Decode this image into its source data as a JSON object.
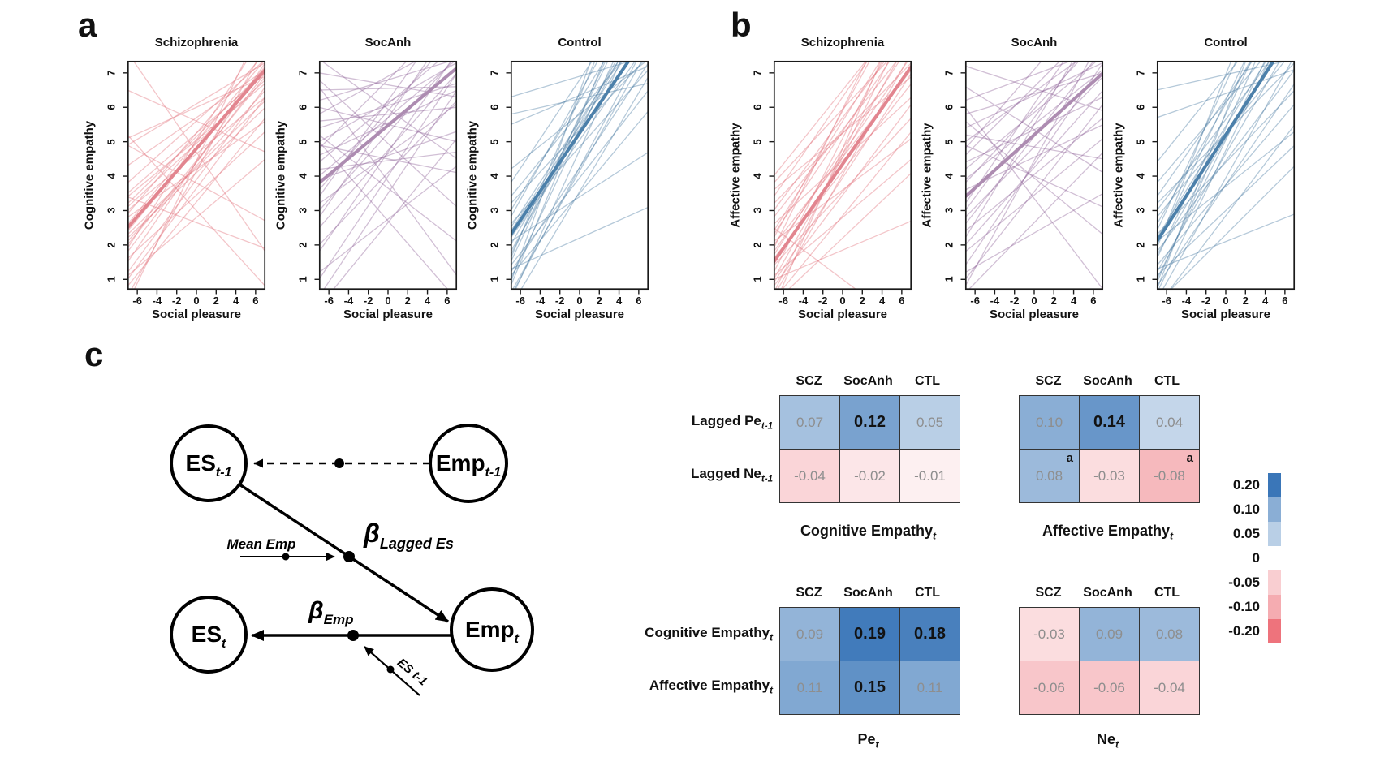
{
  "panels": {
    "a_label": "a",
    "b_label": "b",
    "c_label": "c"
  },
  "chart_data": {
    "type": "line",
    "x": {
      "label": "Social pleasure",
      "range": [
        -7,
        7
      ],
      "ticks": [
        -6,
        -4,
        -2,
        0,
        2,
        4,
        6
      ]
    },
    "y": {
      "range": [
        0.7,
        7.35
      ],
      "ticks": [
        1,
        2,
        3,
        4,
        5,
        6,
        7
      ]
    },
    "grid": false,
    "panels": [
      {
        "panel": "a",
        "title": "Schizophrenia",
        "ylabel": "Cognitive empathy",
        "thin_color": "rgba(224,110,120,0.40)",
        "mean_color": "#e2858f",
        "mean": [
          2.5,
          7.1
        ],
        "lines": [
          [
            1.0,
            6.3
          ],
          [
            1.5,
            7.3
          ],
          [
            2.0,
            6.9
          ],
          [
            2.6,
            7.4
          ],
          [
            3.2,
            7.1
          ],
          [
            0.8,
            5.7
          ],
          [
            1.8,
            7.0
          ],
          [
            2.2,
            6.0
          ],
          [
            3.4,
            6.7
          ],
          [
            2.9,
            7.6
          ],
          [
            1.2,
            6.6
          ],
          [
            2.4,
            7.2
          ],
          [
            3.0,
            6.3
          ],
          [
            3.8,
            7.4
          ],
          [
            4.3,
            7.1
          ],
          [
            1.6,
            5.3
          ],
          [
            2.1,
            6.5
          ],
          [
            2.8,
            5.6
          ],
          [
            3.5,
            7.0
          ],
          [
            4.9,
            7.3
          ],
          [
            5.1,
            6.9
          ],
          [
            1.1,
            4.5
          ],
          [
            0.5,
            7.8
          ],
          [
            2.3,
            6.2
          ],
          [
            3.1,
            6.8
          ],
          [
            7.6,
            1.8
          ],
          [
            5.2,
            0.8
          ],
          [
            4.9,
            2.7
          ],
          [
            3.4,
            1.9
          ],
          [
            6.5,
            4.7
          ],
          [
            0.3,
            8.6
          ],
          [
            1.9,
            8.2
          ]
        ]
      },
      {
        "panel": "a",
        "title": "SocAnh",
        "ylabel": "Cognitive empathy",
        "thin_color": "rgba(140,95,150,0.40)",
        "mean_color": "#ad8cb1",
        "mean": [
          3.8,
          7.15
        ],
        "lines": [
          [
            3.0,
            7.5
          ],
          [
            2.5,
            7.0
          ],
          [
            3.6,
            8.2
          ],
          [
            4.0,
            7.4
          ],
          [
            2.0,
            6.2
          ],
          [
            1.0,
            7.0
          ],
          [
            0.5,
            6.5
          ],
          [
            3.2,
            6.1
          ],
          [
            4.4,
            7.8
          ],
          [
            5.0,
            7.3
          ],
          [
            4.6,
            6.5
          ],
          [
            5.4,
            6.7
          ],
          [
            6.2,
            7.4
          ],
          [
            5.8,
            8.0
          ],
          [
            3.9,
            5.3
          ],
          [
            4.2,
            4.7
          ],
          [
            5.6,
            6.0
          ],
          [
            6.5,
            6.6
          ],
          [
            2.8,
            8.6
          ],
          [
            1.8,
            7.6
          ],
          [
            0.2,
            5.1
          ],
          [
            1.2,
            4.3
          ],
          [
            3.4,
            9.0
          ],
          [
            4.8,
            8.8
          ],
          [
            6.8,
            3.1
          ],
          [
            7.4,
            4.5
          ],
          [
            5.2,
            2.1
          ],
          [
            6.0,
            5.0
          ],
          [
            4.9,
            4.1
          ],
          [
            7.0,
            6.3
          ],
          [
            5.0,
            0.4
          ],
          [
            6.6,
            1.1
          ]
        ]
      },
      {
        "panel": "a",
        "title": "Control",
        "ylabel": "Cognitive empathy",
        "thin_color": "rgba(70,120,160,0.40)",
        "mean_color": "#4c80aa",
        "mean": [
          2.3,
          8.2
        ],
        "lines": [
          [
            1.0,
            9.5
          ],
          [
            0.5,
            8.0
          ],
          [
            1.5,
            10.0
          ],
          [
            2.0,
            9.0
          ],
          [
            1.2,
            7.3
          ],
          [
            0.2,
            6.9
          ],
          [
            2.5,
            8.7
          ],
          [
            3.0,
            9.4
          ],
          [
            1.8,
            8.9
          ],
          [
            0.8,
            10.5
          ],
          [
            2.2,
            7.9
          ],
          [
            1.4,
            6.5
          ],
          [
            3.4,
            8.3
          ],
          [
            2.8,
            10.0
          ],
          [
            0.4,
            9.1
          ],
          [
            1.6,
            11.0
          ],
          [
            2.6,
            7.1
          ],
          [
            3.8,
            9.8
          ],
          [
            1.1,
            5.9
          ],
          [
            0.6,
            7.7
          ],
          [
            2.4,
            8.5
          ],
          [
            3.2,
            7.5
          ],
          [
            6.3,
            7.5
          ],
          [
            5.5,
            7.2
          ],
          [
            4.2,
            7.4
          ],
          [
            1.3,
            3.1
          ],
          [
            2.1,
            4.7
          ],
          [
            5.8,
            6.7
          ],
          [
            0.9,
            12.0
          ],
          [
            1.7,
            9.7
          ]
        ]
      },
      {
        "panel": "b",
        "title": "Schizophrenia",
        "ylabel": "Affective empathy",
        "thin_color": "rgba(224,110,120,0.40)",
        "mean_color": "#e2858f",
        "mean": [
          1.5,
          7.2
        ],
        "lines": [
          [
            0.5,
            7.6
          ],
          [
            1.0,
            8.1
          ],
          [
            1.8,
            7.5
          ],
          [
            2.4,
            8.8
          ],
          [
            0.8,
            6.1
          ],
          [
            1.2,
            9.0
          ],
          [
            2.0,
            7.1
          ],
          [
            3.0,
            8.4
          ],
          [
            0.4,
            5.3
          ],
          [
            1.6,
            6.7
          ],
          [
            2.8,
            7.9
          ],
          [
            3.4,
            9.2
          ],
          [
            0.9,
            7.0
          ],
          [
            1.4,
            5.7
          ],
          [
            2.2,
            9.6
          ],
          [
            3.8,
            8.1
          ],
          [
            1.1,
            4.5
          ],
          [
            2.6,
            6.3
          ],
          [
            0.6,
            8.7
          ],
          [
            1.9,
            10.0
          ],
          [
            3.2,
            7.3
          ],
          [
            2.1,
            5.1
          ],
          [
            4.0,
            9.0
          ],
          [
            0.3,
            4.1
          ],
          [
            1.7,
            7.9
          ],
          [
            2.3,
            8.3
          ],
          [
            3.6,
            6.9
          ],
          [
            2.5,
            -0.5
          ],
          [
            1.0,
            2.7
          ],
          [
            0.2,
            9.4
          ]
        ]
      },
      {
        "panel": "b",
        "title": "SocAnh",
        "ylabel": "Affective empathy",
        "thin_color": "rgba(140,95,150,0.40)",
        "mean_color": "#ad8cb1",
        "mean": [
          3.4,
          7.0
        ],
        "lines": [
          [
            2.6,
            7.7
          ],
          [
            3.0,
            8.4
          ],
          [
            2.0,
            6.5
          ],
          [
            1.4,
            7.3
          ],
          [
            3.8,
            8.1
          ],
          [
            4.2,
            7.5
          ],
          [
            2.4,
            5.7
          ],
          [
            1.0,
            6.1
          ],
          [
            3.2,
            9.0
          ],
          [
            4.6,
            8.6
          ],
          [
            5.0,
            7.9
          ],
          [
            2.8,
            6.9
          ],
          [
            3.6,
            5.5
          ],
          [
            4.4,
            6.3
          ],
          [
            5.4,
            7.3
          ],
          [
            1.8,
            5.1
          ],
          [
            0.6,
            4.7
          ],
          [
            2.2,
            8.8
          ],
          [
            3.9,
            7.1
          ],
          [
            4.8,
            9.4
          ],
          [
            5.8,
            7.0
          ],
          [
            6.2,
            7.7
          ],
          [
            1.2,
            3.5
          ],
          [
            0.8,
            8.1
          ],
          [
            6.6,
            4.1
          ],
          [
            5.6,
            2.3
          ],
          [
            4.9,
            3.1
          ],
          [
            7.2,
            5.9
          ],
          [
            6.0,
            0.7
          ],
          [
            5.2,
            4.5
          ]
        ]
      },
      {
        "panel": "b",
        "title": "Control",
        "ylabel": "Affective empathy",
        "thin_color": "rgba(70,120,160,0.40)",
        "mean_color": "#4c80aa",
        "mean": [
          2.1,
          8.3
        ],
        "lines": [
          [
            1.0,
            9.1
          ],
          [
            0.4,
            7.5
          ],
          [
            1.6,
            10.0
          ],
          [
            2.2,
            8.7
          ],
          [
            0.8,
            6.7
          ],
          [
            1.2,
            8.1
          ],
          [
            2.6,
            9.6
          ],
          [
            3.0,
            8.3
          ],
          [
            0.2,
            5.5
          ],
          [
            1.8,
            7.1
          ],
          [
            2.4,
            11.0
          ],
          [
            3.4,
            9.1
          ],
          [
            0.6,
            8.9
          ],
          [
            1.4,
            6.1
          ],
          [
            2.0,
            10.4
          ],
          [
            3.8,
            8.5
          ],
          [
            1.1,
            4.9
          ],
          [
            2.8,
            7.7
          ],
          [
            0.9,
            9.9
          ],
          [
            1.9,
            12.0
          ],
          [
            3.2,
            7.3
          ],
          [
            2.1,
            5.3
          ],
          [
            4.4,
            9.4
          ],
          [
            0.3,
            4.3
          ],
          [
            1.7,
            8.5
          ],
          [
            6.5,
            7.4
          ],
          [
            5.7,
            7.1
          ],
          [
            1.3,
            2.9
          ],
          [
            0.7,
            11.0
          ],
          [
            2.3,
            6.5
          ]
        ]
      }
    ]
  },
  "heatmaps": {
    "columns": [
      "SCZ",
      "SocAnh",
      "CTL"
    ],
    "value_colors": {
      "positive_max": "#3a76b8",
      "negative_max": "#ee737c",
      "max_abs": 0.2
    },
    "grids": [
      {
        "caption": "Cognitive Empathy",
        "caption_sub": "t",
        "rows": [
          {
            "label": "Lagged Pe",
            "label_sub": "t-1",
            "cells": [
              {
                "v": 0.07
              },
              {
                "v": 0.12,
                "bold": true
              },
              {
                "v": 0.05
              }
            ]
          },
          {
            "label": "Lagged Ne",
            "label_sub": "t-1",
            "cells": [
              {
                "v": -0.04
              },
              {
                "v": -0.02
              },
              {
                "v": -0.01
              }
            ]
          }
        ]
      },
      {
        "caption": "Affective Empathy",
        "caption_sub": "t",
        "rows": [
          {
            "label": "Lagged Pe",
            "label_sub": "t-1",
            "cells": [
              {
                "v": 0.1
              },
              {
                "v": 0.14,
                "bold": true
              },
              {
                "v": 0.04
              }
            ]
          },
          {
            "label": "Lagged Ne",
            "label_sub": "t-1",
            "cells": [
              {
                "v": 0.08,
                "sup": "a"
              },
              {
                "v": -0.03
              },
              {
                "v": -0.08,
                "sup": "a"
              }
            ]
          }
        ]
      },
      {
        "caption": "Pe",
        "caption_sub": "t",
        "rows": [
          {
            "label": "Cognitive Empathy",
            "label_sub": "t",
            "cells": [
              {
                "v": 0.09
              },
              {
                "v": 0.19,
                "bold": true
              },
              {
                "v": 0.18,
                "bold": true
              }
            ]
          },
          {
            "label": "Affective Empathy",
            "label_sub": "t",
            "cells": [
              {
                "v": 0.11
              },
              {
                "v": 0.15,
                "bold": true
              },
              {
                "v": 0.11
              }
            ]
          }
        ]
      },
      {
        "caption": "Ne",
        "caption_sub": "t",
        "rows": [
          {
            "label": "Cognitive Empathy",
            "label_sub": "t",
            "cells": [
              {
                "v": -0.03
              },
              {
                "v": 0.09
              },
              {
                "v": 0.08
              }
            ]
          },
          {
            "label": "Affective Empathy",
            "label_sub": "t",
            "cells": [
              {
                "v": -0.06
              },
              {
                "v": -0.06
              },
              {
                "v": -0.04
              }
            ]
          }
        ]
      }
    ],
    "legend": {
      "entries": [
        {
          "label": "0.20",
          "v": 0.2
        },
        {
          "label": "0.10",
          "v": 0.1
        },
        {
          "label": "0.05",
          "v": 0.05
        },
        {
          "label": "0",
          "v": null
        },
        {
          "label": "-0.05",
          "v": -0.05
        },
        {
          "label": "-0.10",
          "v": -0.1
        },
        {
          "label": "-0.20",
          "v": -0.2
        }
      ]
    }
  },
  "diagram": {
    "nodes": [
      {
        "id": "es-lagged",
        "label": "ES",
        "sub": "t-1"
      },
      {
        "id": "emp-lagged",
        "label": "Emp",
        "sub": "t-1"
      },
      {
        "id": "es-current",
        "label": "ES",
        "sub": "t"
      },
      {
        "id": "emp-current",
        "label": "Emp",
        "sub": "t"
      }
    ],
    "edge_labels": {
      "beta_lagged": "β",
      "beta_lagged_sub": "Lagged Es",
      "beta_emp": "β",
      "beta_emp_sub": "Emp",
      "moderator_mean_emp": "Mean Emp",
      "moderator_es": "ES t-1"
    }
  }
}
